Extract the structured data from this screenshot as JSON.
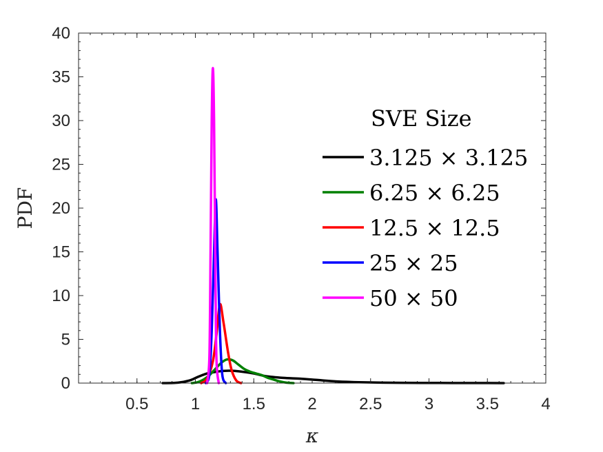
{
  "chart_data": {
    "type": "line",
    "title": "",
    "xlabel": "κ",
    "ylabel": "PDF",
    "xlim": [
      0,
      4
    ],
    "ylim": [
      0,
      40
    ],
    "xticks": [
      0.5,
      1,
      1.5,
      2,
      2.5,
      3,
      3.5,
      4
    ],
    "xtick_labels": [
      "0.5",
      "1",
      "1.5",
      "2",
      "2.5",
      "3",
      "3.5",
      "4"
    ],
    "yticks": [
      0,
      5,
      10,
      15,
      20,
      25,
      30,
      35,
      40
    ],
    "ytick_labels": [
      "0",
      "5",
      "10",
      "15",
      "20",
      "25",
      "30",
      "35",
      "40"
    ],
    "grid": false,
    "legend": {
      "title": "SVE Size",
      "placement": "right-center"
    },
    "series": [
      {
        "name": "3.125 × 3.125",
        "color": "#000000",
        "x": [
          0.72,
          0.85,
          0.95,
          1.02,
          1.1,
          1.18,
          1.25,
          1.33,
          1.4,
          1.5,
          1.6,
          1.75,
          1.9,
          2.05,
          2.2,
          2.4,
          2.6,
          2.8,
          3.0,
          3.2,
          3.4,
          3.64
        ],
        "y": [
          0.0,
          0.05,
          0.3,
          0.7,
          1.1,
          1.3,
          1.4,
          1.4,
          1.3,
          1.1,
          0.8,
          0.6,
          0.5,
          0.35,
          0.2,
          0.1,
          0.05,
          0.03,
          0.02,
          0.01,
          0.01,
          0.0
        ]
      },
      {
        "name": "6.25 × 6.25",
        "color": "#008000",
        "x": [
          0.97,
          1.02,
          1.07,
          1.12,
          1.17,
          1.22,
          1.27,
          1.32,
          1.37,
          1.42,
          1.47,
          1.52,
          1.57,
          1.62,
          1.67,
          1.72,
          1.78,
          1.84
        ],
        "y": [
          0.0,
          0.1,
          0.4,
          0.9,
          1.6,
          2.3,
          2.7,
          2.6,
          2.1,
          1.6,
          1.3,
          1.1,
          0.9,
          0.6,
          0.4,
          0.2,
          0.05,
          0.0
        ]
      },
      {
        "name": "12.5 × 12.5",
        "color": "#ff0000",
        "x": [
          1.05,
          1.1,
          1.15,
          1.18,
          1.21,
          1.24,
          1.28,
          1.31,
          1.35,
          1.39
        ],
        "y": [
          0.0,
          0.5,
          2.5,
          5.5,
          9.0,
          7.0,
          3.5,
          1.5,
          0.3,
          0.0
        ]
      },
      {
        "name": "25 × 25",
        "color": "#0000ff",
        "x": [
          1.09,
          1.12,
          1.14,
          1.16,
          1.175,
          1.19,
          1.21,
          1.23,
          1.26
        ],
        "y": [
          0.0,
          1.0,
          6.0,
          15.0,
          21.0,
          15.0,
          6.0,
          1.0,
          0.0
        ]
      },
      {
        "name": "50 × 50",
        "color": "#ff00ff",
        "x": [
          1.1,
          1.12,
          1.13,
          1.14,
          1.15,
          1.16,
          1.17,
          1.18,
          1.2
        ],
        "y": [
          0.0,
          3.0,
          15.0,
          30.0,
          36.0,
          30.0,
          15.0,
          3.0,
          0.0
        ]
      }
    ]
  }
}
